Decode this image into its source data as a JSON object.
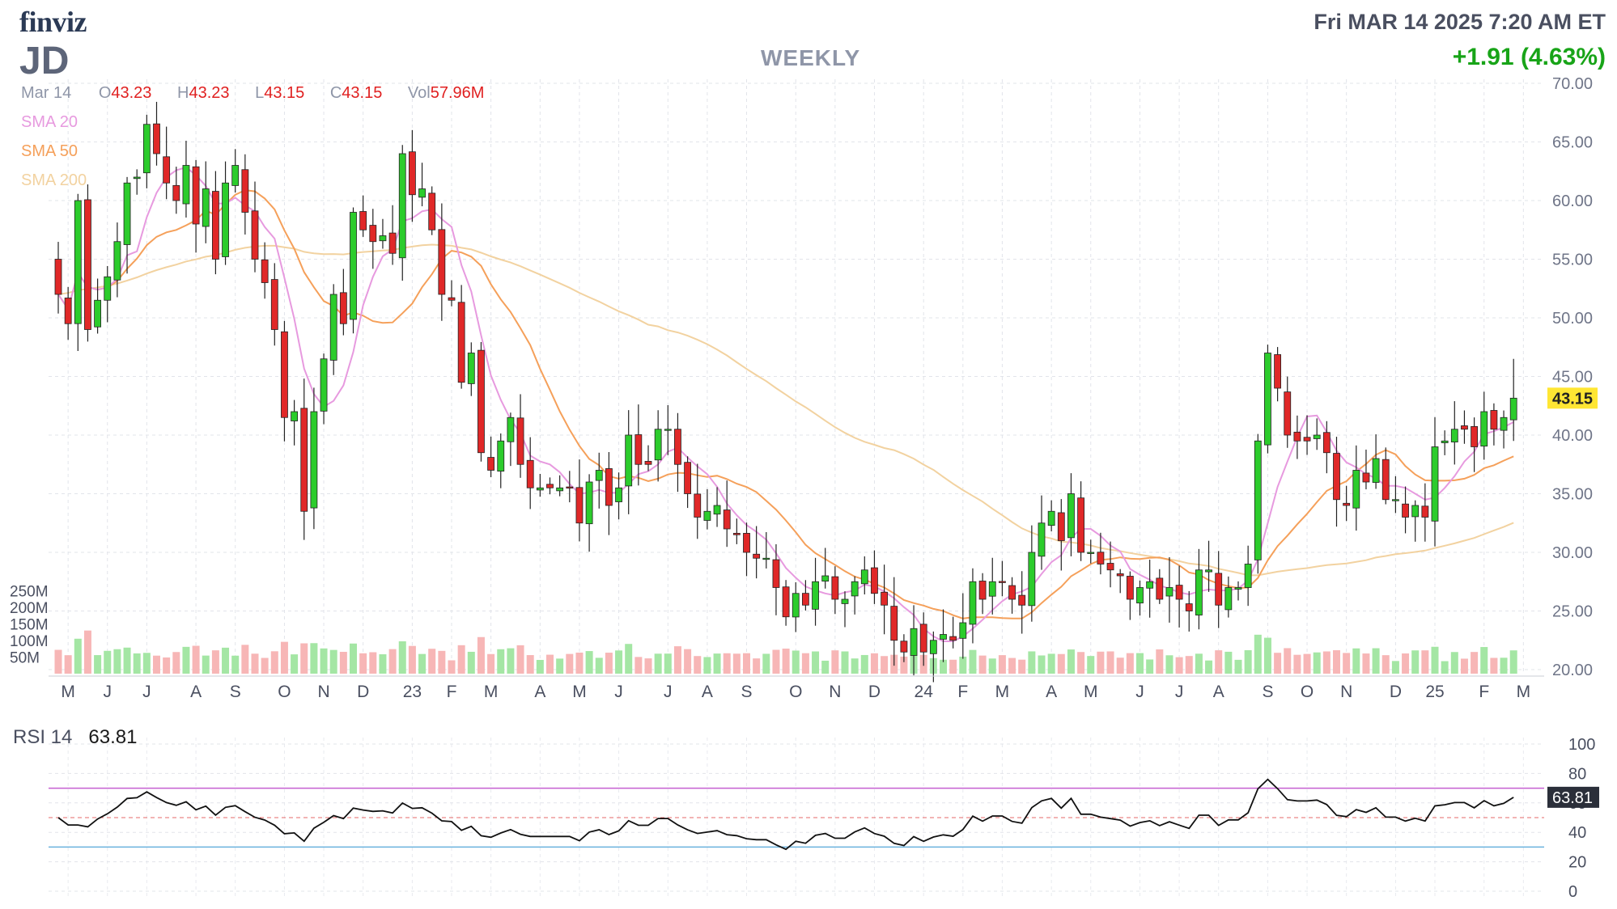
{
  "header": {
    "logo": "finviz",
    "ticker": "JD",
    "period": "WEEKLY",
    "datetime": "Fri MAR 14 2025 7:20 AM ET",
    "change": "+1.91 (4.63%)",
    "ohlc": {
      "date": "Mar 14",
      "o_label": "O",
      "o": "43.23",
      "h_label": "H",
      "h": "43.23",
      "l_label": "L",
      "l": "43.15",
      "c_label": "C",
      "c": "43.15",
      "vol_label": "Vol",
      "vol": "57.96M"
    },
    "sma_labels": [
      "SMA 20",
      "SMA 50",
      "SMA 200"
    ]
  },
  "rsi": {
    "label": "RSI 14",
    "value": "63.81"
  },
  "colors": {
    "up": "#2ccc2c",
    "down": "#e02828",
    "vol_up": "#a4e6a4",
    "vol_down": "#f7b6b6",
    "sma20": "#e79adf",
    "sma50": "#f5a05a",
    "sma200": "#f2d2a0",
    "rsi_line": "#111111",
    "rsi_upper": "#c55fd1",
    "rsi_lower": "#6ab2de",
    "price_tag": "#ffe633"
  },
  "chart_data": [
    {
      "type": "candlestick",
      "name": "JD weekly price",
      "y_ticks": [
        "70.00",
        "65.00",
        "60.00",
        "55.00",
        "50.00",
        "45.00",
        "40.00",
        "35.00",
        "30.00",
        "25.00",
        "20.00"
      ],
      "ylim": [
        20,
        70
      ],
      "last_price_label": "43.15",
      "last_price": 43.15,
      "x_labels": [
        {
          "label": "M",
          "i": 1
        },
        {
          "label": "J",
          "i": 5
        },
        {
          "label": "J",
          "i": 9
        },
        {
          "label": "A",
          "i": 14
        },
        {
          "label": "S",
          "i": 18
        },
        {
          "label": "O",
          "i": 23
        },
        {
          "label": "N",
          "i": 27
        },
        {
          "label": "D",
          "i": 31
        },
        {
          "label": "23",
          "i": 36
        },
        {
          "label": "F",
          "i": 40
        },
        {
          "label": "M",
          "i": 44
        },
        {
          "label": "A",
          "i": 49
        },
        {
          "label": "M",
          "i": 53
        },
        {
          "label": "J",
          "i": 57
        },
        {
          "label": "J",
          "i": 62
        },
        {
          "label": "A",
          "i": 66
        },
        {
          "label": "S",
          "i": 70
        },
        {
          "label": "O",
          "i": 75
        },
        {
          "label": "N",
          "i": 79
        },
        {
          "label": "D",
          "i": 83
        },
        {
          "label": "24",
          "i": 88
        },
        {
          "label": "F",
          "i": 92
        },
        {
          "label": "M",
          "i": 96
        },
        {
          "label": "A",
          "i": 101
        },
        {
          "label": "M",
          "i": 105
        },
        {
          "label": "J",
          "i": 110
        },
        {
          "label": "J",
          "i": 114
        },
        {
          "label": "A",
          "i": 118
        },
        {
          "label": "S",
          "i": 123
        },
        {
          "label": "O",
          "i": 127
        },
        {
          "label": "N",
          "i": 131
        },
        {
          "label": "D",
          "i": 136
        },
        {
          "label": "25",
          "i": 140
        },
        {
          "label": "F",
          "i": 145
        },
        {
          "label": "M",
          "i": 149
        }
      ],
      "close": [
        52,
        49.5,
        60,
        49,
        51.5,
        53.5,
        56.5,
        61.5,
        62,
        66.5,
        64,
        61.5,
        60,
        63,
        58,
        61,
        55,
        61.5,
        63,
        59,
        55,
        53,
        49,
        41.5,
        42,
        33.5,
        42,
        46.5,
        52,
        49.5,
        59,
        57.5,
        56.5,
        57,
        55.5,
        64,
        60.5,
        61,
        57.5,
        52,
        51.5,
        44.5,
        47,
        38.5,
        37,
        39.5,
        41.5,
        37.5,
        35.5,
        35.5,
        35.5,
        35.5,
        35.5,
        32.5,
        36,
        37,
        34,
        35.5,
        40,
        37.5,
        37.5,
        40.5,
        40.5,
        37.5,
        35,
        33,
        33.5,
        34,
        32,
        31.5,
        30,
        29.5,
        29.5,
        27,
        24.5,
        26.5,
        25.5,
        27.5,
        28,
        26,
        26,
        27.5,
        28.5,
        26.5,
        25.5,
        22.5,
        21.5,
        23.5,
        21.5,
        22.5,
        23,
        22.5,
        24,
        27.5,
        26,
        27.5,
        27.5,
        26,
        25.5,
        30,
        32.5,
        33.5,
        31,
        35,
        30,
        30,
        29,
        28.5,
        28,
        26,
        27,
        27.5,
        26,
        27,
        26,
        25,
        28.5,
        28.5,
        25.5,
        27,
        27,
        29,
        39.5,
        47,
        44,
        40,
        39.5,
        39.5,
        40,
        38.5,
        34.5,
        34,
        37,
        36,
        38,
        34.5,
        34.5,
        33,
        34,
        33,
        39,
        39.5,
        40.5,
        40.5,
        39,
        42,
        40.5,
        41.5,
        43.15
      ],
      "volume_ticks": [
        "250M",
        "200M",
        "150M",
        "100M",
        "50M"
      ]
    },
    {
      "type": "line",
      "name": "RSI 14",
      "y_ticks": [
        "100",
        "80",
        "60",
        "40",
        "20",
        "0"
      ],
      "ylim": [
        0,
        100
      ],
      "upper": 70,
      "lower": 30,
      "mid": 50,
      "value_label": "63.81"
    }
  ]
}
